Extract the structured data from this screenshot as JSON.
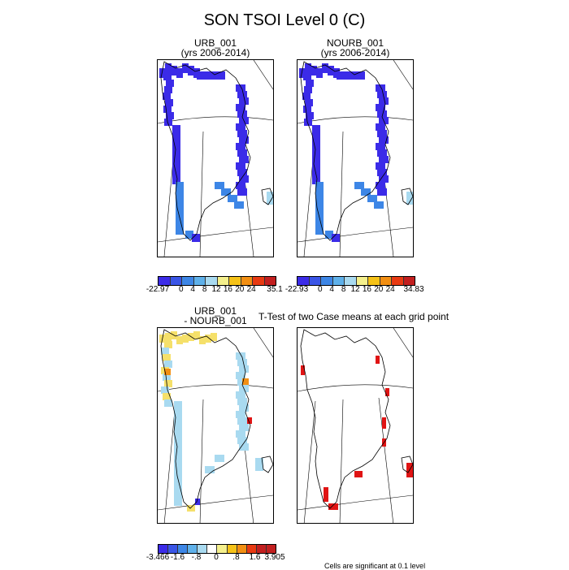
{
  "title": "SON TSOI Level 0 (C)",
  "panels": {
    "p1": {
      "title_line1": "URB_001",
      "title_line2": "(yrs 2006-2014)"
    },
    "p2": {
      "title_line1": "NOURB_001",
      "title_line2": "(yrs 2006-2014)"
    },
    "p3": {
      "title_line1": "URB_001",
      "title_line2": "- NOURB_001"
    },
    "p4": {
      "title_line1": "T-Test of two Case means at each grid point",
      "title_line2": ""
    }
  },
  "colorbars": {
    "cb1": {
      "labels": [
        "-22.97",
        "0",
        "4",
        "8",
        "12",
        "16",
        "20",
        "24",
        "35.1"
      ],
      "colors": [
        "#3b2be8",
        "#3a55e6",
        "#3d86e6",
        "#5fb1ea",
        "#a9daf0",
        "#f5f08c",
        "#f5c218",
        "#f28f13",
        "#e83a12",
        "#c21f1f"
      ]
    },
    "cb2": {
      "labels": [
        "-22.93",
        "0",
        "4",
        "8",
        "12",
        "16",
        "20",
        "24",
        "34.83"
      ],
      "colors": [
        "#3b2be8",
        "#3a55e6",
        "#3d86e6",
        "#5fb1ea",
        "#a9daf0",
        "#f5f08c",
        "#f5c218",
        "#f28f13",
        "#e83a12",
        "#c21f1f"
      ]
    },
    "cb3": {
      "labels": [
        "-3.466",
        "-1.6",
        "-.8",
        "0",
        ".8",
        "1.6",
        "3.905"
      ],
      "colors": [
        "#3b2be8",
        "#3a55e6",
        "#3d86e6",
        "#5fb1ea",
        "#a9daf0",
        "#ffffff",
        "#f5f08c",
        "#f5c218",
        "#f28f13",
        "#e83a12",
        "#c21f1f",
        "#c21f1f"
      ]
    }
  },
  "note": "Cells are significant at 0.1 level",
  "colors": {
    "deep_cold": "#3b2be8",
    "cold": "#3d86e6",
    "light": "#a9daf0",
    "yellow": "#f5e06a",
    "orange": "#f28f13",
    "signif": "#e01414"
  },
  "chart_data": {
    "type": "heatmap",
    "title": "SON TSOI Level 0 (C)",
    "maps": [
      {
        "name": "URB_001",
        "period": "yrs 2006-2014",
        "range": [
          -22.97,
          35.1
        ],
        "dominant": "very cold (blue) coastal cells around Greenland"
      },
      {
        "name": "NOURB_001",
        "period": "yrs 2006-2014",
        "range": [
          -22.93,
          34.83
        ],
        "dominant": "very cold (blue) coastal cells around Greenland"
      },
      {
        "name": "URB_001 - NOURB_001",
        "range": [
          -3.466,
          3.905
        ],
        "dominant": "mostly small positive (yellow) differences, some negative (blue)"
      },
      {
        "name": "T-Test of two Case means at each grid point",
        "significant_at": 0.1,
        "dominant": "few scattered significant cells (red)"
      }
    ]
  }
}
